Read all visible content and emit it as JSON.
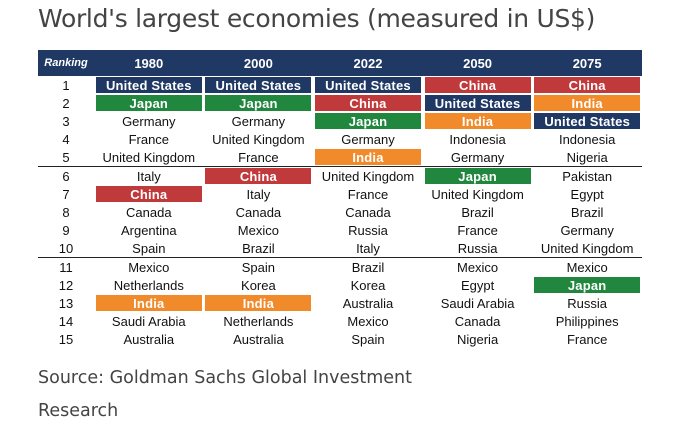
{
  "title": "World's largest economies (measured in US$)",
  "source": "Source: Goldman Sachs Global Investment Research",
  "colors": {
    "header": "#1f3864",
    "United States": "#1f3864",
    "China": "#c0393b",
    "Japan": "#21873f",
    "India": "#f08a2b"
  },
  "chart_data": {
    "type": "table",
    "title": "World's largest economies (measured in US$)",
    "columns": [
      "Ranking",
      "1980",
      "2000",
      "2022",
      "2050",
      "2075"
    ],
    "rows": [
      [
        "1",
        "United States",
        "United States",
        "United States",
        "China",
        "China"
      ],
      [
        "2",
        "Japan",
        "Japan",
        "China",
        "United States",
        "India"
      ],
      [
        "3",
        "Germany",
        "Germany",
        "Japan",
        "India",
        "United States"
      ],
      [
        "4",
        "France",
        "United Kingdom",
        "Germany",
        "Indonesia",
        "Indonesia"
      ],
      [
        "5",
        "United Kingdom",
        "France",
        "India",
        "Germany",
        "Nigeria"
      ],
      [
        "6",
        "Italy",
        "China",
        "United Kingdom",
        "Japan",
        "Pakistan"
      ],
      [
        "7",
        "China",
        "Italy",
        "France",
        "United Kingdom",
        "Egypt"
      ],
      [
        "8",
        "Canada",
        "Canada",
        "Canada",
        "Brazil",
        "Brazil"
      ],
      [
        "9",
        "Argentina",
        "Mexico",
        "Russia",
        "France",
        "Germany"
      ],
      [
        "10",
        "Spain",
        "Brazil",
        "Italy",
        "Russia",
        "United Kingdom"
      ],
      [
        "11",
        "Mexico",
        "Spain",
        "Brazil",
        "Mexico",
        "Mexico"
      ],
      [
        "12",
        "Netherlands",
        "Korea",
        "Korea",
        "Egypt",
        "Japan"
      ],
      [
        "13",
        "India",
        "India",
        "Australia",
        "Saudi Arabia",
        "Russia"
      ],
      [
        "14",
        "Saudi Arabia",
        "Netherlands",
        "Mexico",
        "Canada",
        "Philippines"
      ],
      [
        "15",
        "Australia",
        "Australia",
        "Spain",
        "Nigeria",
        "France"
      ]
    ]
  }
}
